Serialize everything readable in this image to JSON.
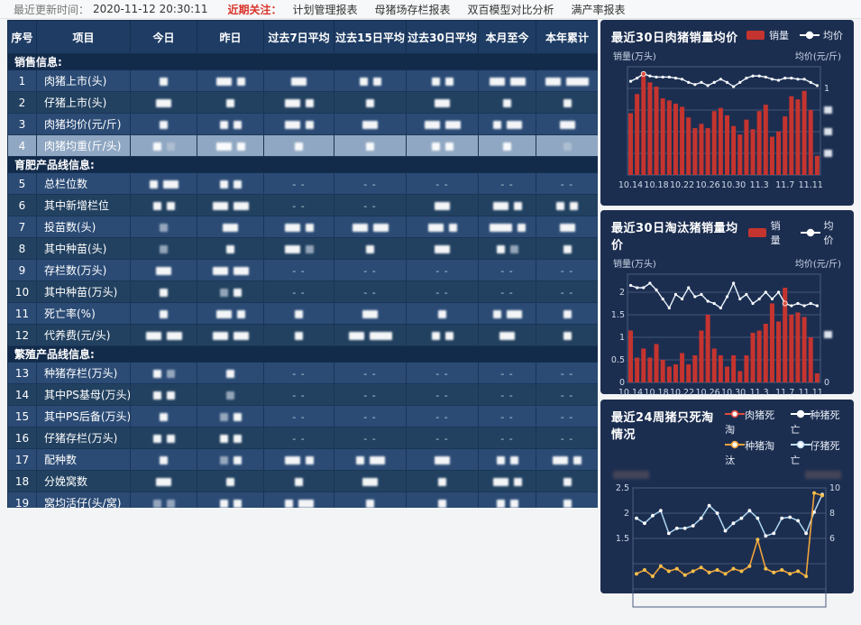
{
  "topbar": {
    "update_label": "最近更新时间：",
    "update_time": "2020-11-12 20:30:11",
    "focus_label": "近期关注：",
    "links": [
      "计划管理报表",
      "母猪场存栏报表",
      "双百模型对比分析",
      "满产率报表"
    ]
  },
  "table": {
    "headers": [
      "序号",
      "项目",
      "今日",
      "昨日",
      "过去7日平均",
      "过去15日平均",
      "过去30日平均",
      "本月至今",
      "本年累计"
    ],
    "dash_display": "- -",
    "sections": [
      {
        "title": "销售信息:",
        "rows": [
          {
            "no": "1",
            "name": "肉猪上市(头)",
            "cells": [
              "s",
              "m s",
              "m",
              "s s",
              "s s",
              "m m",
              "m l"
            ]
          },
          {
            "no": "2",
            "name": "仔猪上市(头)",
            "cells": [
              "m",
              "s",
              "m s",
              "s",
              "m",
              "s",
              "s"
            ]
          },
          {
            "no": "3",
            "name": "肉猪均价(元/斤)",
            "cells": [
              "s",
              "s s",
              "m s",
              "m",
              "m m",
              "s m",
              "m"
            ]
          },
          {
            "no": "4",
            "name": "肉猪均重(斤/头)",
            "selected": true,
            "cells": [
              "s g",
              "m s",
              "s",
              "s",
              "s s",
              "s",
              "g"
            ]
          }
        ]
      },
      {
        "title": "育肥产品线信息:",
        "rows": [
          {
            "no": "5",
            "name": "总栏位数",
            "cells": [
              "s m",
              "s s",
              "--",
              "--",
              "--",
              "--",
              "--"
            ]
          },
          {
            "no": "6",
            "name": "其中新增栏位",
            "cells": [
              "s s",
              "m m",
              "--",
              "--",
              "m",
              "m s",
              "s s"
            ]
          },
          {
            "no": "7",
            "name": "投苗数(头)",
            "cells": [
              "g",
              "m",
              "m s",
              "m m",
              "m s",
              "l s",
              "m"
            ]
          },
          {
            "no": "8",
            "name": "其中种苗(头)",
            "cells": [
              "g",
              "s",
              "m g",
              "s",
              "m",
              "s g",
              "s"
            ]
          },
          {
            "no": "9",
            "name": "存栏数(万头)",
            "cells": [
              "m",
              "m m",
              "--",
              "--",
              "--",
              "--",
              "--"
            ]
          },
          {
            "no": "10",
            "name": "其中种苗(万头)",
            "cells": [
              "s",
              "g s",
              "--",
              "--",
              "--",
              "--",
              "--"
            ]
          },
          {
            "no": "11",
            "name": "死亡率(%)",
            "cells": [
              "s",
              "m s",
              "s",
              "m",
              "s",
              "s m",
              "s"
            ]
          },
          {
            "no": "12",
            "name": "代养费(元/头)",
            "cells": [
              "m m",
              "m m",
              "s",
              "m l",
              "s s",
              "m",
              "s"
            ]
          }
        ]
      },
      {
        "title": "繁殖产品线信息:",
        "rows": [
          {
            "no": "13",
            "name": "种猪存栏(万头)",
            "cells": [
              "s g",
              "s",
              "--",
              "--",
              "--",
              "--",
              "--"
            ]
          },
          {
            "no": "14",
            "name": "其中PS基母(万头)",
            "cells": [
              "s s",
              "g",
              "--",
              "--",
              "--",
              "--",
              "--"
            ]
          },
          {
            "no": "15",
            "name": "其中PS后备(万头)",
            "cells": [
              "s",
              "g s",
              "--",
              "--",
              "--",
              "--",
              "--"
            ]
          },
          {
            "no": "16",
            "name": "仔猪存栏(万头)",
            "cells": [
              "s s",
              "s s",
              "--",
              "--",
              "--",
              "--",
              "--"
            ]
          },
          {
            "no": "17",
            "name": "配种数",
            "cells": [
              "s",
              "g s",
              "m s",
              "s m",
              "m",
              "s s",
              "m s"
            ]
          },
          {
            "no": "18",
            "name": "分娩窝数",
            "cells": [
              "m",
              "s",
              "s",
              "m",
              "s",
              "m s",
              "s"
            ]
          },
          {
            "no": "19",
            "name": "窝均活仔(头/窝)",
            "cells": [
              "g g",
              "s s",
              "s m",
              "s",
              "s",
              "s s",
              "s"
            ]
          }
        ]
      }
    ]
  },
  "chart_data": [
    {
      "type": "bar+line",
      "title": "最近30日肉猪销量均价",
      "legend": [
        {
          "label": "销量",
          "marker": "bar",
          "color": "#c5342f"
        },
        {
          "label": "均价",
          "marker": "line",
          "color": "#ffffff"
        }
      ],
      "y_left_name": "销量(万头)",
      "y_right_name": "均价(元/斤)",
      "x_labels": [
        "10.14",
        "10.18",
        "10.22",
        "10.26",
        "10.30",
        "11.3",
        "11.7",
        "11.11"
      ],
      "y_left_ticks": [],
      "y_right_ticks": [
        "1",
        "blur",
        "blur",
        "blur"
      ],
      "note_ticks": "most axis tick values redacted (blurred) in source",
      "series": [
        {
          "name": "销量",
          "type": "bar",
          "values_pct_of_plot": [
            58,
            76,
            95,
            87,
            83,
            72,
            70,
            67,
            64,
            54,
            44,
            48,
            44,
            60,
            63,
            56,
            46,
            38,
            52,
            43,
            60,
            66,
            36,
            41,
            55,
            74,
            71,
            79,
            61,
            18
          ]
        },
        {
          "name": "均价",
          "type": "line",
          "values_pct_of_plot": [
            88,
            91,
            95,
            93,
            92,
            92,
            92,
            91,
            90,
            87,
            85,
            87,
            84,
            87,
            90,
            87,
            83,
            87,
            91,
            93,
            93,
            92,
            90,
            89,
            91,
            91,
            90,
            90,
            87,
            84
          ]
        }
      ],
      "peak_index": 2
    },
    {
      "type": "bar+line",
      "title": "最近30日淘汰猪销量均价",
      "legend": [
        {
          "label": "销量",
          "marker": "bar",
          "color": "#c5342f"
        },
        {
          "label": "均价",
          "marker": "line",
          "color": "#ffffff"
        }
      ],
      "y_left_name": "销量(万头)",
      "y_right_name": "均价(元/斤)",
      "x_labels": [
        "10.14",
        "10.18",
        "10.22",
        "10.26",
        "10.30",
        "11.3",
        "11.7",
        "11.11"
      ],
      "y_left_ticks": [
        "2",
        "1.5",
        "1",
        "0.5",
        "0"
      ],
      "y_right_ticks": [
        "blur",
        "0"
      ],
      "series": [
        {
          "name": "销量",
          "type": "bar",
          "values": [
            1.15,
            0.55,
            0.75,
            0.55,
            0.85,
            0.5,
            0.35,
            0.4,
            0.65,
            0.4,
            0.6,
            1.15,
            1.5,
            0.75,
            0.6,
            0.35,
            0.6,
            0.25,
            0.6,
            1.1,
            1.15,
            1.3,
            1.75,
            1.35,
            2.1,
            1.5,
            1.55,
            1.45,
            1.0,
            0.2
          ]
        },
        {
          "name": "均价",
          "type": "line",
          "values": [
            2.15,
            2.1,
            2.1,
            2.2,
            2.05,
            1.85,
            1.65,
            1.95,
            1.85,
            2.1,
            1.9,
            1.95,
            1.8,
            1.75,
            1.65,
            1.9,
            2.2,
            1.85,
            1.95,
            1.75,
            1.85,
            2.0,
            1.85,
            2.0,
            1.75,
            1.7,
            1.75,
            1.7,
            1.75,
            1.7
          ]
        }
      ],
      "peak_index": 24
    },
    {
      "type": "line",
      "title": "最近24周猪只死淘情况",
      "legend": [
        {
          "label": "肉猪死淘",
          "color": "#e04b3c"
        },
        {
          "label": "种猪死亡",
          "color": "#ffffff"
        },
        {
          "label": "种猪淘汰",
          "color": "#f0a33a"
        },
        {
          "label": "仔猪死亡",
          "color": "#bfe0f7"
        }
      ],
      "y_left_ticks": [
        "2.5",
        "2",
        "1.5"
      ],
      "y_right_ticks": [
        "10",
        "8",
        "6"
      ],
      "axis_names_redacted": true,
      "series": [
        {
          "name": "仔猪死亡",
          "axis": "left",
          "color": "#aed6f2",
          "values": [
            1.9,
            1.8,
            1.95,
            2.05,
            1.6,
            1.7,
            1.7,
            1.75,
            1.9,
            2.15,
            2.0,
            1.65,
            1.8,
            1.9,
            2.05,
            1.9,
            1.55,
            1.6,
            1.9,
            1.92,
            1.85,
            1.6,
            2.02,
            2.37
          ]
        },
        {
          "name": "种猪淘汰",
          "axis": "right",
          "color": "#f0a33a",
          "values": [
            3.2,
            3.5,
            3.0,
            3.8,
            3.4,
            3.6,
            3.1,
            3.4,
            3.7,
            3.3,
            3.5,
            3.2,
            3.6,
            3.4,
            3.8,
            5.9,
            3.6,
            3.3,
            3.5,
            3.2,
            3.4,
            3.0,
            9.6,
            9.4
          ]
        }
      ]
    }
  ],
  "colors": {
    "accent_red": "#c5342f",
    "panel_bg": "#1c2e50",
    "row_selected": "#8fa7c2",
    "link_red": "#d9342b",
    "yellow": "#f0a33a",
    "light_blue": "#aed6f2"
  }
}
